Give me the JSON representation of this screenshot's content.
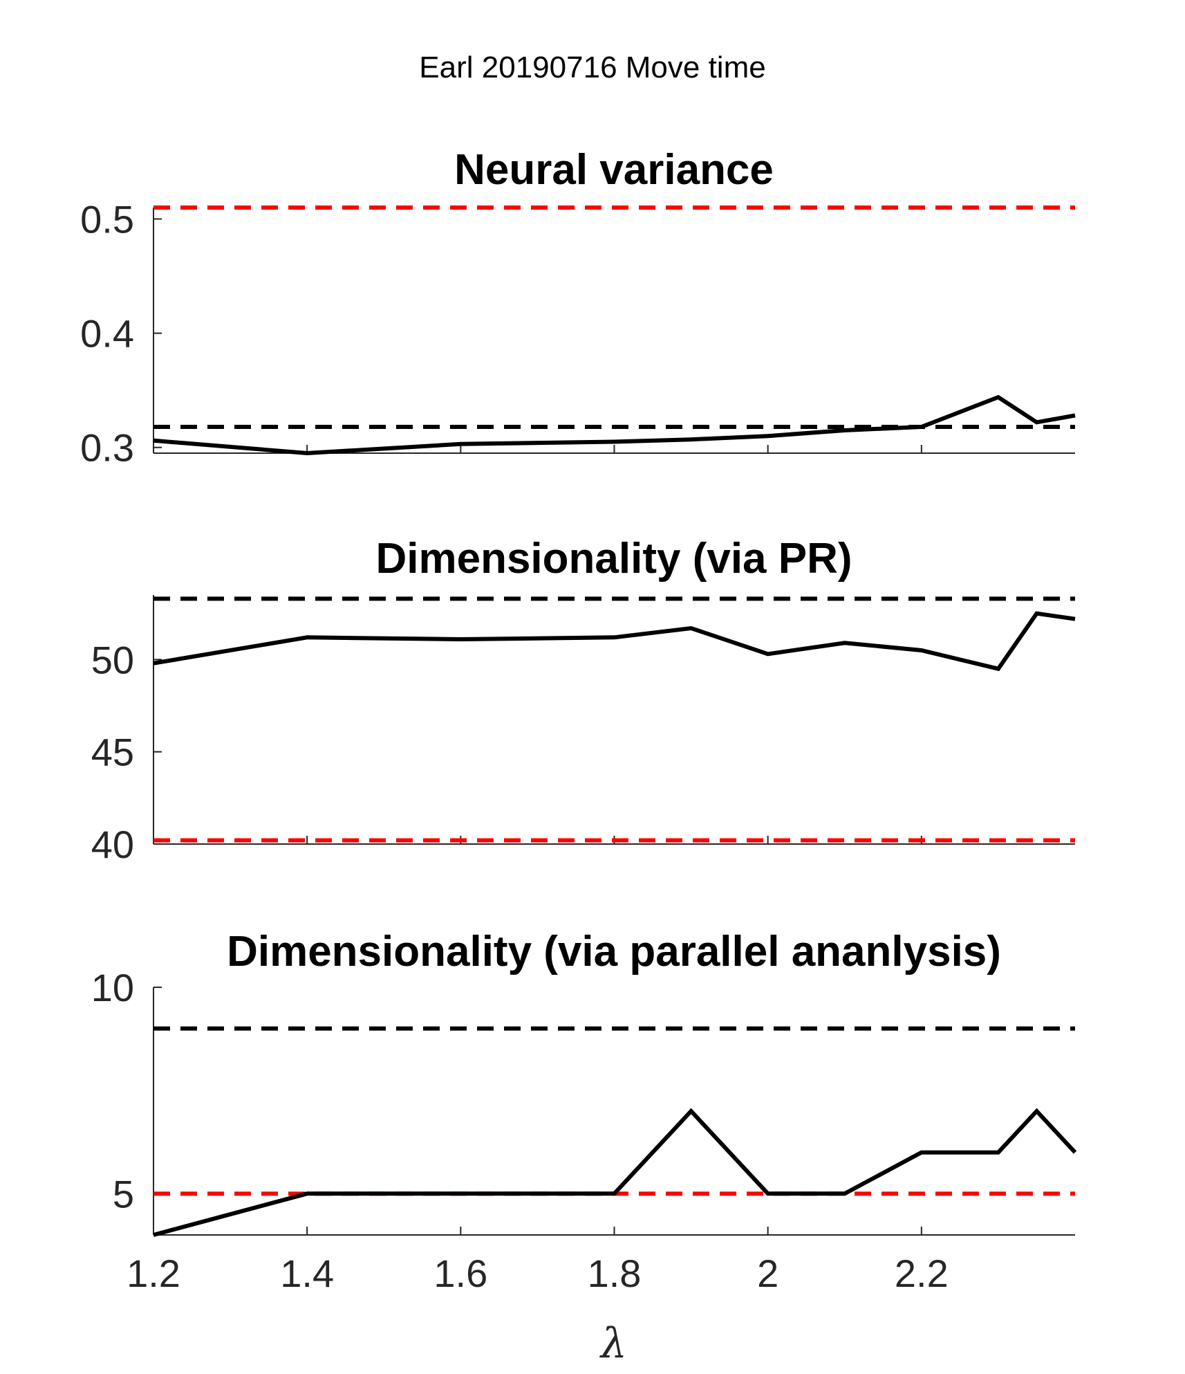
{
  "figure_title": "Earl 20190716 Move time",
  "x_axis_label": "λ",
  "chart_data": [
    {
      "type": "line",
      "title": "Neural variance",
      "xlim": [
        1.2,
        2.4
      ],
      "ylim": [
        0.295,
        0.51
      ],
      "xticks": [
        1.2,
        1.4,
        1.6,
        1.8,
        2.0,
        2.2
      ],
      "xtick_labels": [
        "1.2",
        "1.4",
        "1.6",
        "1.8",
        "2",
        "2.2"
      ],
      "yticks": [
        0.3,
        0.4,
        0.5
      ],
      "ytick_labels": [
        "0.3",
        "0.4",
        "0.5"
      ],
      "x": [
        1.2,
        1.4,
        1.6,
        1.8,
        1.9,
        2.0,
        2.1,
        2.2,
        2.3,
        2.35,
        2.4
      ],
      "y": [
        0.306,
        0.295,
        0.303,
        0.305,
        0.307,
        0.31,
        0.315,
        0.318,
        0.344,
        0.322,
        0.328
      ],
      "reference_lines": [
        {
          "color": "#000000",
          "value": 0.318
        },
        {
          "color": "#ff0000",
          "value": 0.51
        }
      ],
      "show_xtick_labels": false
    },
    {
      "type": "line",
      "title": "Dimensionality (via PR)",
      "xlim": [
        1.2,
        2.4
      ],
      "ylim": [
        40,
        53.5
      ],
      "xticks": [
        1.2,
        1.4,
        1.6,
        1.8,
        2.0,
        2.2
      ],
      "xtick_labels": [
        "1.2",
        "1.4",
        "1.6",
        "1.8",
        "2",
        "2.2"
      ],
      "yticks": [
        40,
        45,
        50
      ],
      "ytick_labels": [
        "40",
        "45",
        "50"
      ],
      "x": [
        1.2,
        1.4,
        1.6,
        1.8,
        1.9,
        2.0,
        2.1,
        2.2,
        2.3,
        2.35,
        2.4
      ],
      "y": [
        49.8,
        51.2,
        51.1,
        51.2,
        51.7,
        50.3,
        50.9,
        50.5,
        49.5,
        52.5,
        52.2
      ],
      "reference_lines": [
        {
          "color": "#000000",
          "value": 53.3
        },
        {
          "color": "#ff0000",
          "value": 40.2
        }
      ],
      "show_xtick_labels": false
    },
    {
      "type": "line",
      "title": "Dimensionality (via parallel ananlysis)",
      "xlim": [
        1.2,
        2.4
      ],
      "ylim": [
        4,
        10
      ],
      "xticks": [
        1.2,
        1.4,
        1.6,
        1.8,
        2.0,
        2.2
      ],
      "xtick_labels": [
        "1.2",
        "1.4",
        "1.6",
        "1.8",
        "2",
        "2.2"
      ],
      "yticks": [
        5,
        10
      ],
      "ytick_labels": [
        "5",
        "10"
      ],
      "x": [
        1.2,
        1.4,
        1.6,
        1.8,
        1.9,
        2.0,
        2.1,
        2.2,
        2.3,
        2.35,
        2.4
      ],
      "y": [
        4,
        5,
        5,
        5,
        7,
        5,
        5,
        6,
        6,
        7,
        6
      ],
      "reference_lines": [
        {
          "color": "#000000",
          "value": 9
        },
        {
          "color": "#ff0000",
          "value": 5
        }
      ],
      "show_xtick_labels": true
    }
  ]
}
